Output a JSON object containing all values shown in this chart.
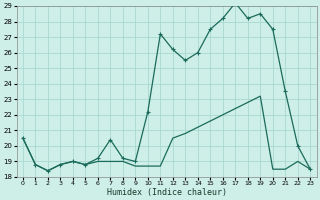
{
  "xlabel": "Humidex (Indice chaleur)",
  "x_values": [
    0,
    1,
    2,
    3,
    4,
    5,
    6,
    7,
    8,
    9,
    10,
    11,
    12,
    13,
    14,
    15,
    16,
    17,
    18,
    19,
    20,
    21,
    22,
    23
  ],
  "line1": [
    20.5,
    18.8,
    18.4,
    18.8,
    19.0,
    18.8,
    19.2,
    20.4,
    19.2,
    19.0,
    22.2,
    27.2,
    26.2,
    25.5,
    26.0,
    27.5,
    28.2,
    29.2,
    28.2,
    28.5,
    27.5,
    23.5,
    20.0,
    18.5
  ],
  "line2": [
    20.5,
    18.8,
    18.4,
    18.8,
    19.0,
    18.8,
    19.0,
    19.0,
    19.0,
    18.7,
    18.7,
    18.7,
    20.5,
    20.8,
    21.2,
    21.6,
    22.0,
    22.4,
    22.8,
    23.2,
    18.5,
    18.5,
    19.0,
    18.5
  ],
  "ylim_min": 18,
  "ylim_max": 29,
  "yticks": [
    18,
    19,
    20,
    21,
    22,
    23,
    24,
    25,
    26,
    27,
    28,
    29
  ],
  "bg_color": "#ceeee8",
  "grid_color": "#a8d8d0",
  "line_color": "#1a6b5a",
  "fig_width": 3.2,
  "fig_height": 2.0,
  "dpi": 100
}
